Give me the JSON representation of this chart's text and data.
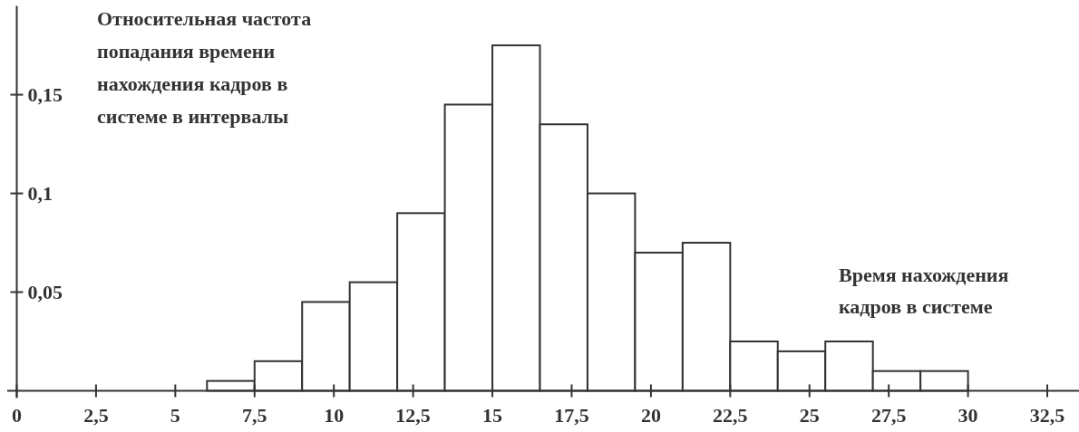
{
  "chart_data": {
    "type": "histogram",
    "ylabel": "Относительная частота\nпопадания времени\nнахождения кадров в\nсистеме в интервалы",
    "xlabel": "Время нахождения\nкадров в системе",
    "bins": [
      6,
      7.5,
      9,
      10.5,
      12,
      13.5,
      15,
      16.5,
      18,
      19.5,
      21,
      22.5,
      24,
      25.5,
      27,
      28.5,
      30
    ],
    "values": [
      0.005,
      0.015,
      0.045,
      0.055,
      0.09,
      0.145,
      0.175,
      0.135,
      0.1,
      0.07,
      0.075,
      0.025,
      0.02,
      0.025,
      0.01,
      0.01
    ],
    "color": "#ffffff",
    "xlim": [
      -0.3,
      33.5
    ],
    "ylim": [
      0,
      0.195
    ],
    "xticks": [
      0,
      {
        "value": 2.5,
        "label": "2,5"
      },
      5,
      {
        "value": 7.5,
        "label": "7,5"
      },
      10,
      {
        "value": 12.5,
        "label": "12,5"
      },
      15,
      {
        "value": 17.5,
        "label": "17,5"
      },
      20,
      {
        "value": 22.5,
        "label": "22,5"
      },
      25,
      {
        "value": 27.5,
        "label": "27,5"
      },
      30,
      {
        "value": 32.5,
        "label": "32,5"
      }
    ],
    "yticks": [
      {
        "value": 0.05,
        "label": "0,05"
      },
      {
        "value": 0.1,
        "label": "0,1"
      },
      {
        "value": 0.15,
        "label": "0,15"
      }
    ],
    "grid": false
  }
}
